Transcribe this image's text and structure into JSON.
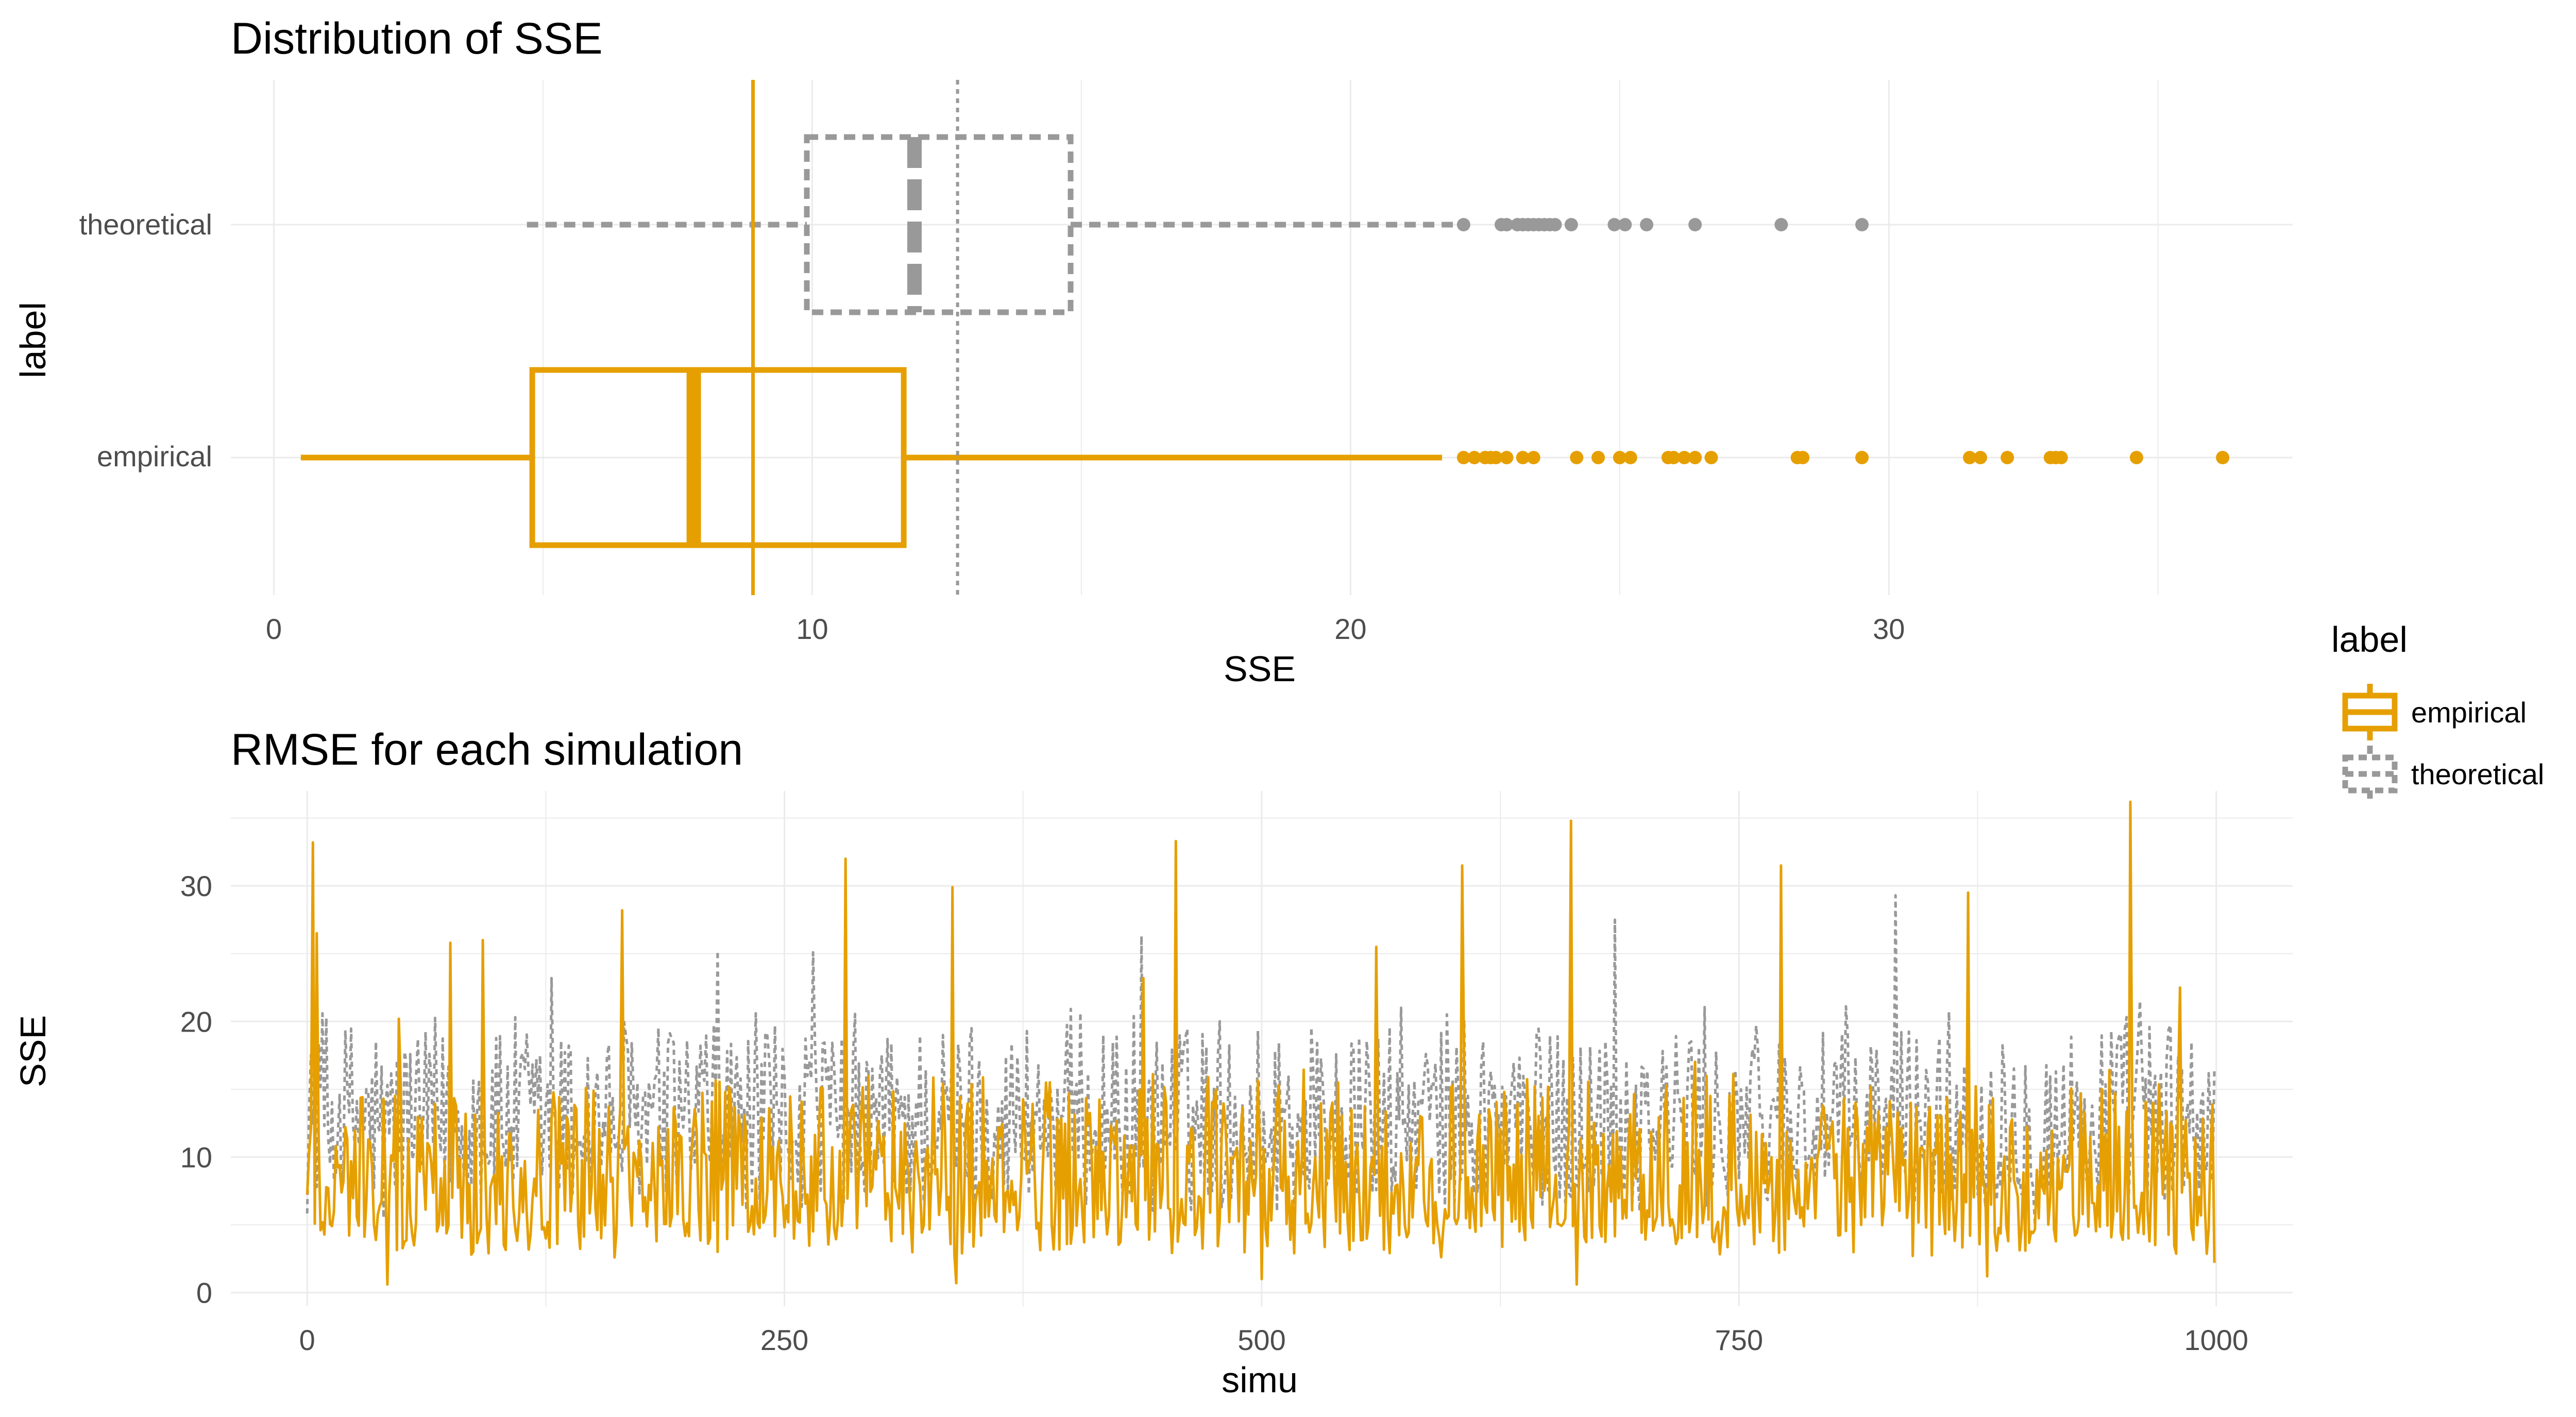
{
  "colors": {
    "empirical": "#E69F00",
    "theoretical": "#999999",
    "grid": "#ebebeb"
  },
  "legend": {
    "title": "label",
    "items": [
      {
        "label": "empirical",
        "color": "#E69F00",
        "linetype": "solid"
      },
      {
        "label": "theoretical",
        "color": "#999999",
        "linetype": "dashed"
      }
    ]
  },
  "chart_data": [
    {
      "type": "boxplot",
      "title": "Distribution of SSE",
      "xlabel": "SSE",
      "ylabel": "label",
      "xlim": [
        -0.8,
        37.5
      ],
      "x_ticks": [
        0,
        10,
        20,
        30
      ],
      "categories": [
        "empirical",
        "theoretical"
      ],
      "boxes": [
        {
          "name": "empirical",
          "whisker_low": 0.5,
          "q1": 4.8,
          "median": 7.8,
          "q3": 11.7,
          "whisker_high": 21.7,
          "outliers": [
            22.1,
            22.3,
            22.5,
            22.6,
            22.7,
            22.9,
            23.2,
            23.4,
            24.2,
            24.6,
            25.0,
            25.2,
            25.9,
            26.0,
            26.2,
            26.4,
            26.7,
            28.3,
            28.4,
            29.5,
            31.5,
            31.7,
            32.2,
            33.0,
            33.1,
            33.2,
            34.6,
            36.2
          ]
        },
        {
          "name": "theoretical",
          "whisker_low": 4.7,
          "q1": 9.9,
          "median": 11.9,
          "q3": 14.8,
          "whisker_high": 22.0,
          "outliers": [
            22.1,
            22.8,
            22.9,
            23.1,
            23.2,
            23.3,
            23.4,
            23.5,
            23.6,
            23.7,
            23.8,
            24.1,
            24.9,
            25.1,
            25.5,
            26.4,
            28.0,
            29.5
          ]
        }
      ],
      "reference_lines": [
        {
          "x": 8.9,
          "series": "empirical",
          "style": "solid"
        },
        {
          "x": 12.7,
          "series": "theoretical",
          "style": "dotted"
        }
      ]
    },
    {
      "type": "line",
      "title": "RMSE for each simulation",
      "xlabel": "simu",
      "ylabel": "SSE",
      "xlim": [
        -40,
        1040
      ],
      "ylim": [
        -1,
        37
      ],
      "x_ticks": [
        0,
        250,
        500,
        750,
        1000
      ],
      "y_ticks": [
        0,
        10,
        20,
        30
      ],
      "n_points": 1000,
      "series": [
        {
          "name": "empirical",
          "style": "solid",
          "peaks": [
            [
              3,
              33.2
            ],
            [
              5,
              26.5
            ],
            [
              48,
              20.2
            ],
            [
              75,
              25.8
            ],
            [
              92,
              26.0
            ],
            [
              165,
              28.2
            ],
            [
              282,
              32.0
            ],
            [
              338,
              29.9
            ],
            [
              438,
              23.2
            ],
            [
              455,
              33.3
            ],
            [
              560,
              25.5
            ],
            [
              605,
              31.5
            ],
            [
              662,
              34.8
            ],
            [
              772,
              31.5
            ],
            [
              870,
              29.5
            ],
            [
              955,
              36.2
            ],
            [
              981,
              22.5
            ]
          ],
          "troughs": [
            [
              42,
              0.6
            ],
            [
              340,
              0.7
            ],
            [
              500,
              1.0
            ],
            [
              665,
              0.6
            ],
            [
              880,
              1.2
            ],
            [
              1000,
              2.2
            ]
          ]
        },
        {
          "name": "theoretical",
          "style": "dashed",
          "peaks": [
            [
              8,
              20.6
            ],
            [
              128,
              23.2
            ],
            [
              215,
              25.2
            ],
            [
              265,
              25.1
            ],
            [
              437,
              26.3
            ],
            [
              685,
              27.5
            ],
            [
              832,
              29.3
            ],
            [
              960,
              21.5
            ]
          ],
          "troughs": [
            [
              40,
              5.5
            ],
            [
              288,
              5.2
            ],
            [
              500,
              5.5
            ],
            [
              905,
              5.0
            ]
          ]
        }
      ]
    }
  ]
}
